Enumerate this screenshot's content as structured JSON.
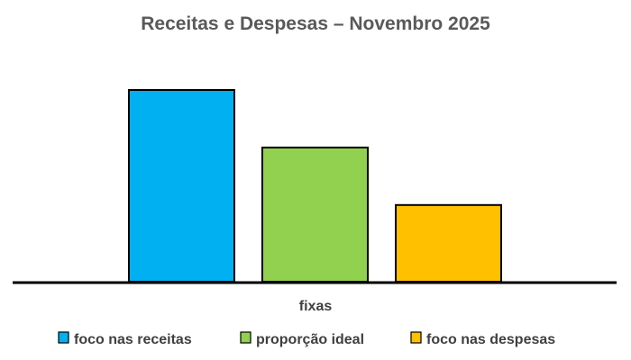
{
  "chart_data": {
    "type": "bar",
    "title": "Receitas e Despesas – Novembro 2025",
    "categories": [
      "fixas"
    ],
    "series": [
      {
        "name": "foco nas receitas",
        "color": "#00B0F0",
        "values": [
          100
        ]
      },
      {
        "name": "proporção ideal",
        "color": "#92D050",
        "values": [
          70
        ]
      },
      {
        "name": "foco nas despesas",
        "color": "#FFC000",
        "values": [
          40
        ]
      }
    ],
    "ylim": [
      0,
      100
    ],
    "grid": false,
    "y_axis_visible": false,
    "legend_position": "bottom"
  }
}
